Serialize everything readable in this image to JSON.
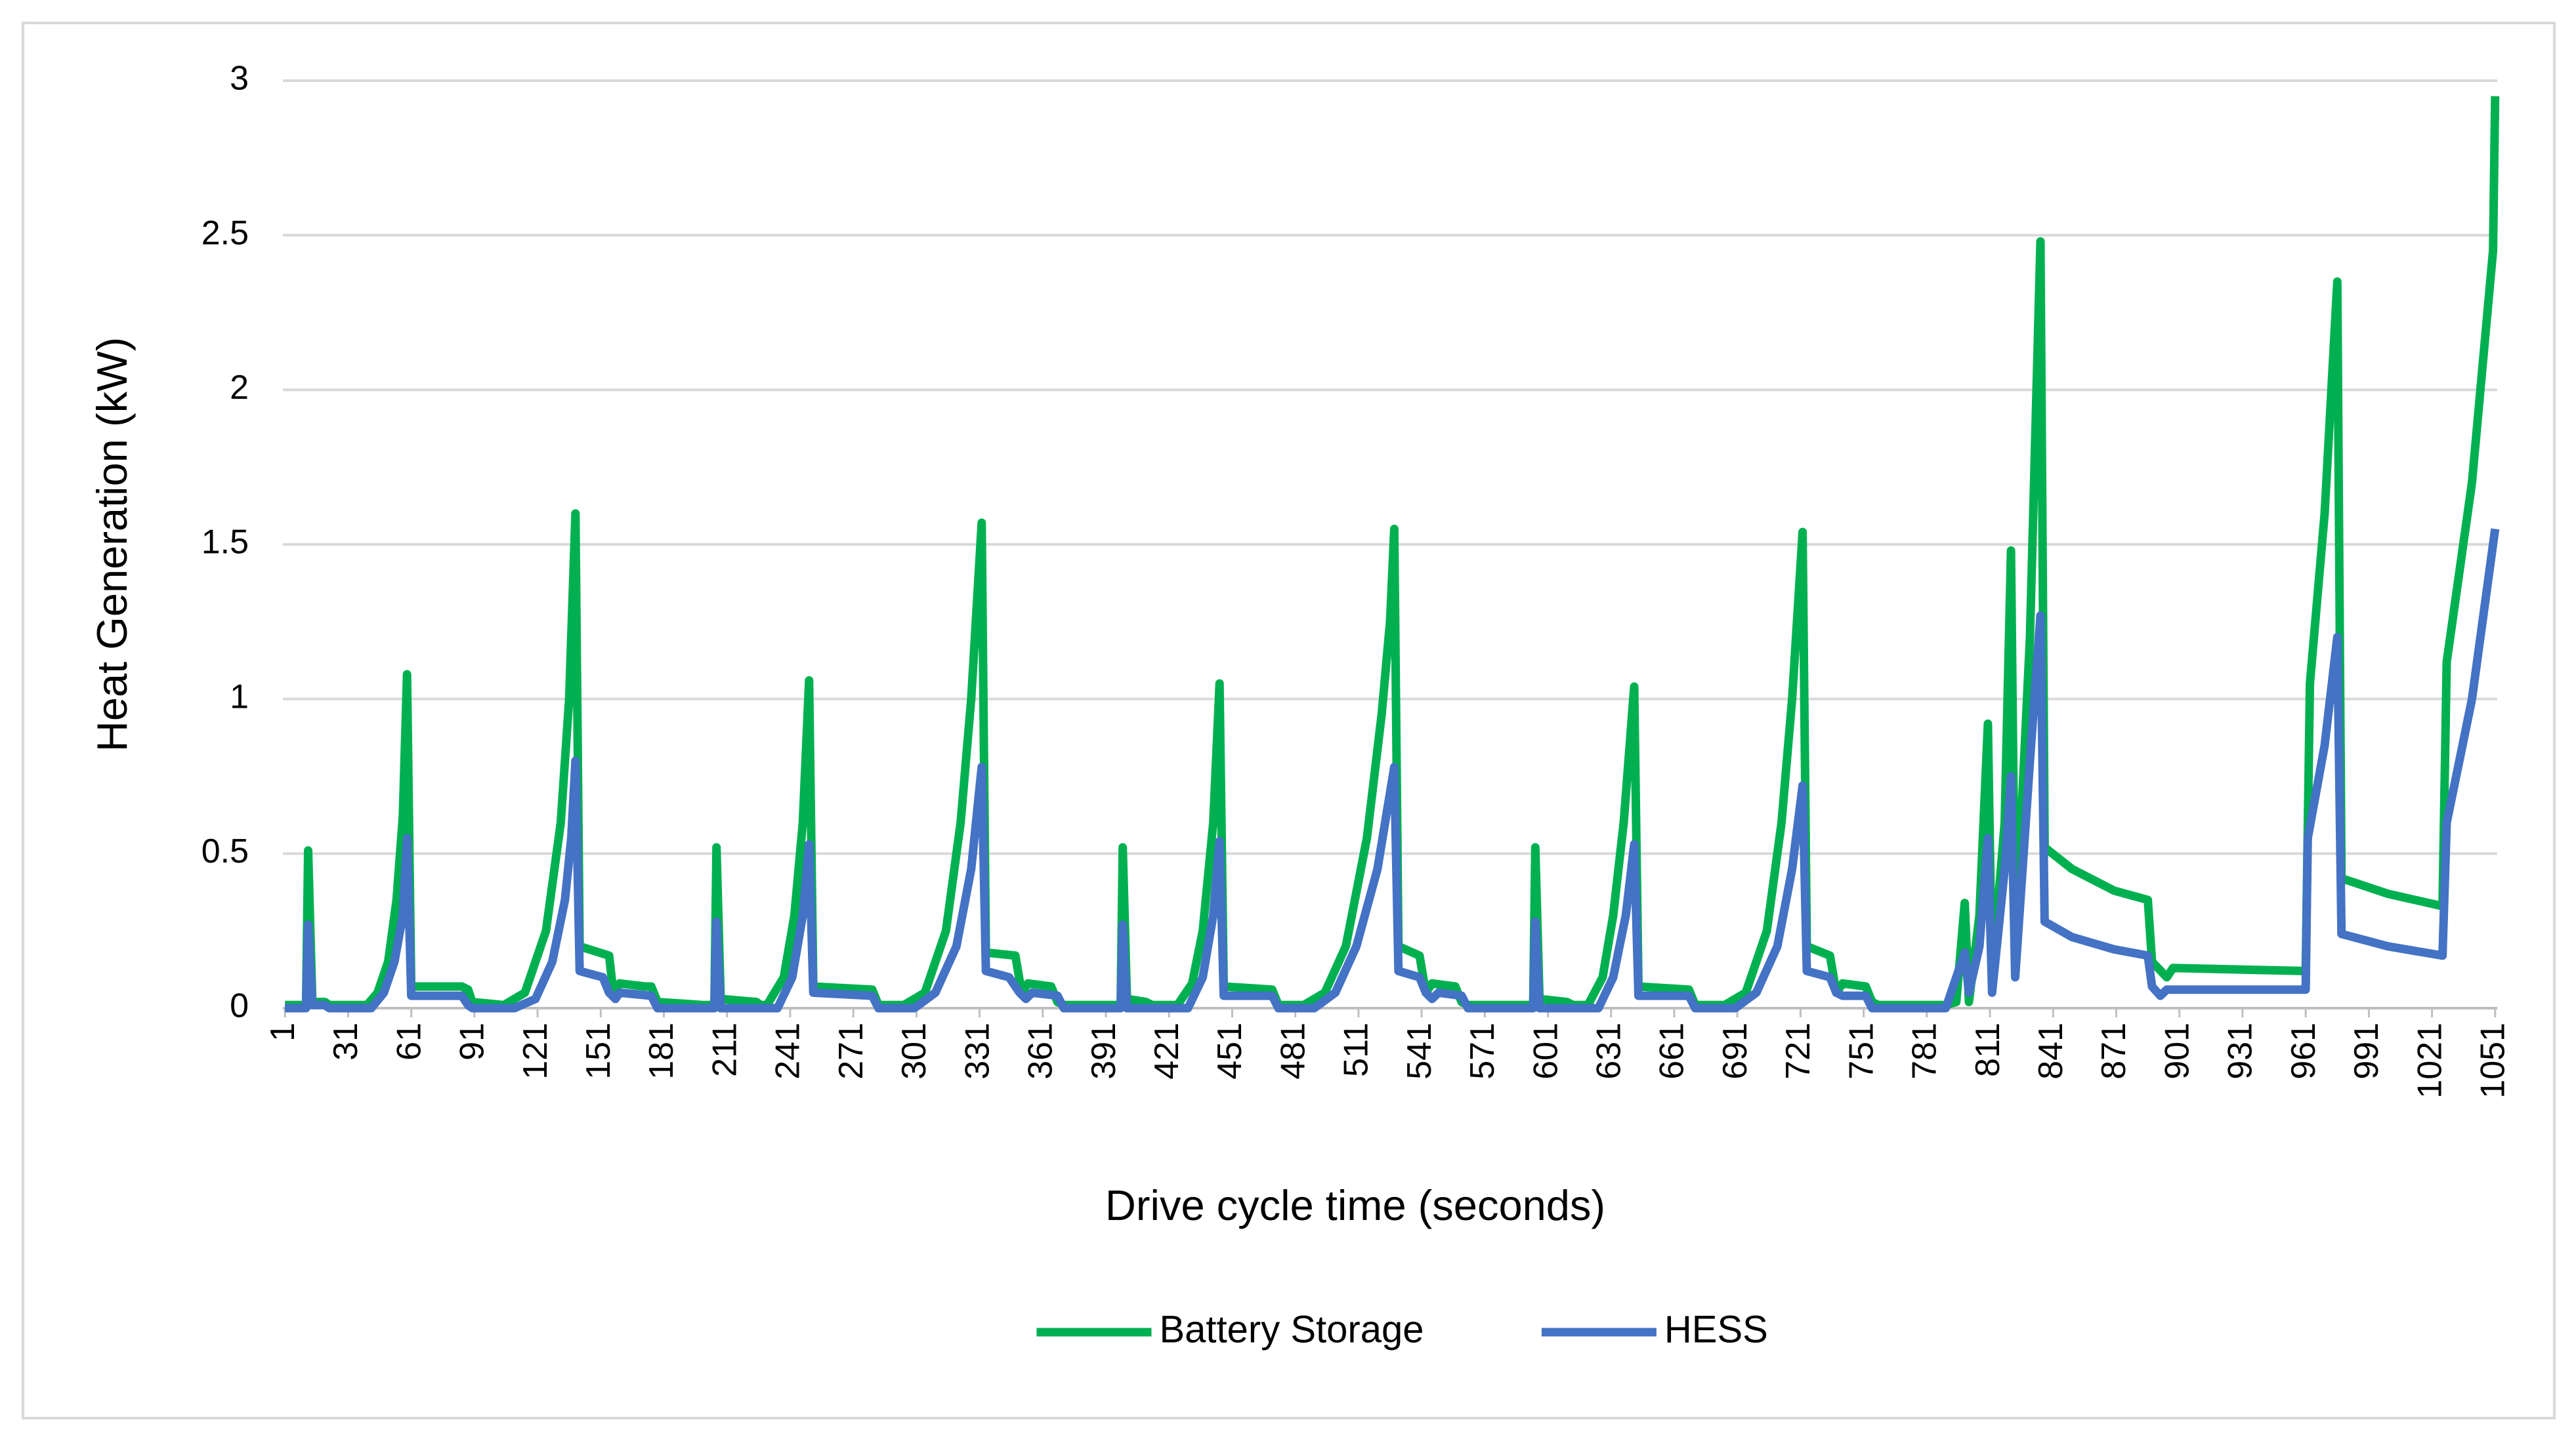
{
  "chart_data": {
    "type": "line",
    "y_label": "Heat Generation (kW)",
    "x_label": "Drive cycle time (seconds)",
    "xlim": [
      0,
      1052
    ],
    "xticks": [
      1,
      31,
      61,
      91,
      121,
      151,
      181,
      211,
      241,
      271,
      301,
      331,
      361,
      391,
      421,
      451,
      481,
      511,
      541,
      571,
      601,
      631,
      661,
      691,
      721,
      751,
      781,
      811,
      841,
      871,
      901,
      931,
      961,
      991,
      1021,
      1051
    ],
    "ylim": [
      0,
      3
    ],
    "yticks": [
      0,
      0.5,
      1,
      1.5,
      2,
      2.5,
      3
    ],
    "grid": true,
    "legend": "bottom",
    "series": [
      {
        "name": "Battery Storage",
        "color": "#00b050",
        "x": [
          1,
          11,
          12,
          14,
          20,
          22,
          40,
          45,
          50,
          54,
          57,
          59,
          61,
          85,
          88,
          90,
          105,
          115,
          125,
          132,
          136,
          139,
          141,
          155,
          157,
          160,
          172,
          175,
          178,
          200,
          205,
          206,
          208,
          225,
          227,
          230,
          238,
          243,
          247,
          250,
          252,
          280,
          283,
          295,
          305,
          315,
          322,
          327,
          332,
          334,
          348,
          351,
          354,
          365,
          368,
          371,
          392,
          398,
          399,
          401,
          410,
          413,
          425,
          432,
          437,
          442,
          445,
          447,
          470,
          473,
          485,
          495,
          505,
          515,
          522,
          526,
          528,
          530,
          540,
          543,
          546,
          557,
          560,
          563,
          585,
          594,
          595,
          597,
          610,
          613,
          620,
          627,
          632,
          637,
          642,
          644,
          668,
          671,
          685,
          695,
          705,
          712,
          717,
          722,
          724,
          735,
          738,
          741,
          752,
          755,
          758,
          790,
          795,
          799,
          801,
          806,
          810,
          812,
          818,
          821,
          823,
          830,
          835,
          837,
          850,
          870,
          886,
          888,
          895,
          898,
          961,
          963,
          970,
          976,
          978,
          1000,
          1026,
          1028,
          1040,
          1050,
          1051
        ],
        "values": [
          0.01,
          0.01,
          0.51,
          0.02,
          0.02,
          0.01,
          0.01,
          0.05,
          0.15,
          0.35,
          0.62,
          1.08,
          0.07,
          0.07,
          0.06,
          0.02,
          0.01,
          0.05,
          0.25,
          0.6,
          1.0,
          1.6,
          0.2,
          0.17,
          0.05,
          0.08,
          0.07,
          0.07,
          0.02,
          0.01,
          0.01,
          0.52,
          0.03,
          0.02,
          0.01,
          0.01,
          0.1,
          0.3,
          0.6,
          1.06,
          0.07,
          0.06,
          0.01,
          0.01,
          0.05,
          0.25,
          0.6,
          1.0,
          1.57,
          0.18,
          0.17,
          0.05,
          0.08,
          0.07,
          0.02,
          0.01,
          0.01,
          0.01,
          0.52,
          0.03,
          0.02,
          0.01,
          0.01,
          0.08,
          0.25,
          0.6,
          1.05,
          0.07,
          0.06,
          0.01,
          0.01,
          0.05,
          0.2,
          0.55,
          0.95,
          1.25,
          1.55,
          0.2,
          0.17,
          0.05,
          0.08,
          0.07,
          0.02,
          0.01,
          0.01,
          0.01,
          0.52,
          0.03,
          0.02,
          0.01,
          0.01,
          0.1,
          0.3,
          0.6,
          1.04,
          0.07,
          0.06,
          0.01,
          0.01,
          0.05,
          0.25,
          0.6,
          1.0,
          1.54,
          0.2,
          0.17,
          0.05,
          0.08,
          0.07,
          0.02,
          0.01,
          0.01,
          0.02,
          0.34,
          0.02,
          0.3,
          0.92,
          0.1,
          0.6,
          1.48,
          0.2,
          1.2,
          2.48,
          0.52,
          0.45,
          0.38,
          0.35,
          0.15,
          0.1,
          0.13,
          0.12,
          1.05,
          1.6,
          2.35,
          0.42,
          0.37,
          0.33,
          1.12,
          1.7,
          2.45,
          2.95
        ]
      },
      {
        "name": "HESS",
        "color": "#4472c4",
        "x": [
          1,
          11,
          12,
          14,
          20,
          22,
          42,
          48,
          53,
          57,
          59,
          61,
          85,
          88,
          90,
          110,
          120,
          128,
          134,
          137,
          139,
          141,
          152,
          155,
          158,
          160,
          175,
          178,
          205,
          206,
          208,
          235,
          242,
          247,
          250,
          252,
          280,
          283,
          300,
          310,
          320,
          327,
          332,
          334,
          345,
          350,
          353,
          356,
          368,
          371,
          398,
          399,
          401,
          430,
          437,
          442,
          445,
          447,
          470,
          473,
          490,
          500,
          510,
          520,
          528,
          530,
          540,
          543,
          546,
          549,
          560,
          563,
          594,
          595,
          597,
          625,
          632,
          638,
          642,
          644,
          668,
          671,
          690,
          700,
          710,
          717,
          722,
          724,
          735,
          738,
          741,
          752,
          755,
          790,
          799,
          801,
          806,
          810,
          812,
          818,
          821,
          823,
          830,
          835,
          837,
          850,
          870,
          886,
          888,
          892,
          895,
          961,
          962,
          970,
          976,
          978,
          1000,
          1026,
          1028,
          1040,
          1051
        ],
        "values": [
          0,
          0,
          0.27,
          0.01,
          0.01,
          0,
          0,
          0.05,
          0.15,
          0.3,
          0.55,
          0.04,
          0.04,
          0.01,
          0,
          0,
          0.03,
          0.15,
          0.35,
          0.55,
          0.8,
          0.12,
          0.1,
          0.05,
          0.03,
          0.05,
          0.04,
          0,
          0,
          0.28,
          0,
          0,
          0.1,
          0.3,
          0.53,
          0.05,
          0.04,
          0,
          0,
          0.05,
          0.2,
          0.45,
          0.78,
          0.12,
          0.1,
          0.05,
          0.03,
          0.05,
          0.04,
          0,
          0,
          0.27,
          0,
          0,
          0.1,
          0.3,
          0.54,
          0.04,
          0.04,
          0,
          0,
          0.05,
          0.2,
          0.45,
          0.78,
          0.12,
          0.1,
          0.05,
          0.03,
          0.05,
          0.04,
          0,
          0,
          0.28,
          0,
          0,
          0.1,
          0.3,
          0.53,
          0.04,
          0.04,
          0,
          0,
          0.05,
          0.2,
          0.45,
          0.72,
          0.12,
          0.1,
          0.05,
          0.04,
          0.04,
          0,
          0,
          0.18,
          0.05,
          0.2,
          0.55,
          0.05,
          0.45,
          0.75,
          0.1,
          0.8,
          1.27,
          0.28,
          0.23,
          0.19,
          0.17,
          0.07,
          0.04,
          0.06,
          0.06,
          0.55,
          0.85,
          1.2,
          0.24,
          0.2,
          0.17,
          0.6,
          1.0,
          1.55
        ]
      }
    ]
  }
}
